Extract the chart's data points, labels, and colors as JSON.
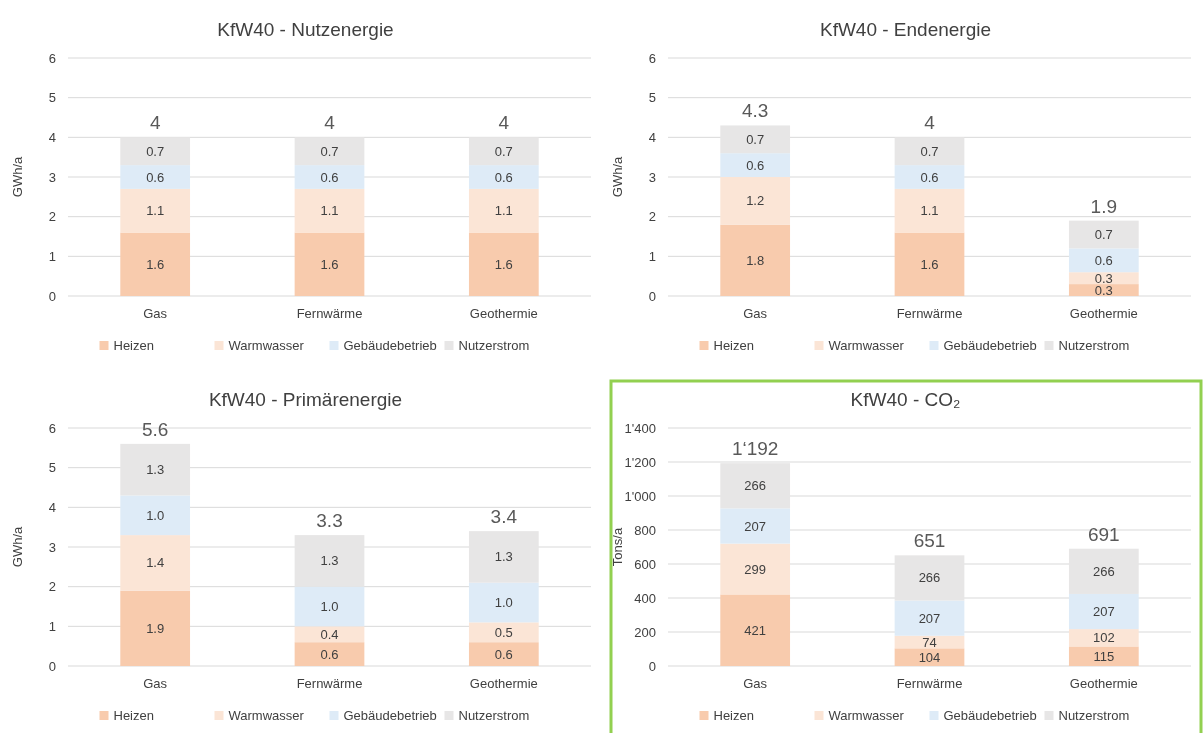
{
  "chart_data": [
    {
      "type": "bar",
      "title": "KfW40 - Nutzenergie",
      "ylabel": "GWh/a",
      "categories": [
        "Gas",
        "Fernwärme",
        "Geothermie"
      ],
      "stacked": true,
      "ylim": [
        0,
        6
      ],
      "yticks": [
        0,
        1,
        2,
        3,
        4,
        5,
        6
      ],
      "grid": "y",
      "legend": "bottom",
      "totals": [
        "4",
        "4",
        "4"
      ],
      "series": [
        {
          "name": "Heizen",
          "color": "#f8cbad",
          "values": [
            1.6,
            1.6,
            1.6
          ],
          "value_labels": [
            "1.6",
            "1.6",
            "1.6"
          ]
        },
        {
          "name": "Warmwasser",
          "color": "#fbe5d6",
          "values": [
            1.1,
            1.1,
            1.1
          ],
          "value_labels": [
            "1.1",
            "1.1",
            "1.1"
          ]
        },
        {
          "name": "Gebäudebetrieb",
          "color": "#deebf7",
          "values": [
            0.6,
            0.6,
            0.6
          ],
          "value_labels": [
            "0.6",
            "0.6",
            "0.6"
          ]
        },
        {
          "name": "Nutzerstrom",
          "color": "#e7e6e6",
          "values": [
            0.7,
            0.7,
            0.7
          ],
          "value_labels": [
            "0.7",
            "0.7",
            "0.7"
          ]
        }
      ]
    },
    {
      "type": "bar",
      "title": "KfW40 - Endenergie",
      "ylabel": "GWh/a",
      "categories": [
        "Gas",
        "Fernwärme",
        "Geothermie"
      ],
      "stacked": true,
      "ylim": [
        0,
        6
      ],
      "yticks": [
        0,
        1,
        2,
        3,
        4,
        5,
        6
      ],
      "grid": "y",
      "legend": "bottom",
      "totals": [
        "4.3",
        "4",
        "1.9"
      ],
      "series": [
        {
          "name": "Heizen",
          "color": "#f8cbad",
          "values": [
            1.8,
            1.6,
            0.3
          ],
          "value_labels": [
            "1.8",
            "1.6",
            "0.3"
          ]
        },
        {
          "name": "Warmwasser",
          "color": "#fbe5d6",
          "values": [
            1.2,
            1.1,
            0.3
          ],
          "value_labels": [
            "1.2",
            "1.1",
            "0.3"
          ]
        },
        {
          "name": "Gebäudebetrieb",
          "color": "#deebf7",
          "values": [
            0.6,
            0.6,
            0.6
          ],
          "value_labels": [
            "0.6",
            "0.6",
            "0.6"
          ]
        },
        {
          "name": "Nutzerstrom",
          "color": "#e7e6e6",
          "values": [
            0.7,
            0.7,
            0.7
          ],
          "value_labels": [
            "0.7",
            "0.7",
            "0.7"
          ]
        }
      ]
    },
    {
      "type": "bar",
      "title": "KfW40 - Primärenergie",
      "ylabel": "GWh/a",
      "categories": [
        "Gas",
        "Fernwärme",
        "Geothermie"
      ],
      "stacked": true,
      "ylim": [
        0,
        6
      ],
      "yticks": [
        0,
        1,
        2,
        3,
        4,
        5,
        6
      ],
      "grid": "y",
      "legend": "bottom",
      "totals": [
        "5.6",
        "3.3",
        "3.4"
      ],
      "series": [
        {
          "name": "Heizen",
          "color": "#f8cbad",
          "values": [
            1.9,
            0.6,
            0.6
          ],
          "value_labels": [
            "1.9",
            "0.6",
            "0.6"
          ]
        },
        {
          "name": "Warmwasser",
          "color": "#fbe5d6",
          "values": [
            1.4,
            0.4,
            0.5
          ],
          "value_labels": [
            "1.4",
            "0.4",
            "0.5"
          ]
        },
        {
          "name": "Gebäudebetrieb",
          "color": "#deebf7",
          "values": [
            1.0,
            1.0,
            1.0
          ],
          "value_labels": [
            "1.0",
            "1.0",
            "1.0"
          ]
        },
        {
          "name": "Nutzerstrom",
          "color": "#e7e6e6",
          "values": [
            1.3,
            1.3,
            1.3
          ],
          "value_labels": [
            "1.3",
            "1.3",
            "1.3"
          ]
        }
      ]
    },
    {
      "type": "bar",
      "title": "KfW40 - CO₂",
      "ylabel": "Tons/a",
      "categories": [
        "Gas",
        "Fernwärme",
        "Geothermie"
      ],
      "stacked": true,
      "ylim": [
        0,
        1400
      ],
      "yticks": [
        0,
        200,
        400,
        600,
        800,
        {
          "value": 1000,
          "label": "1'000"
        },
        {
          "value": 1200,
          "label": "1'200"
        },
        {
          "value": 1400,
          "label": "1'400"
        }
      ],
      "grid": "y",
      "legend": "bottom",
      "totals": [
        "1‘192",
        "651",
        "691"
      ],
      "series": [
        {
          "name": "Heizen",
          "color": "#f8cbad",
          "values": [
            421,
            104,
            115
          ],
          "value_labels": [
            "421",
            "104",
            "115"
          ]
        },
        {
          "name": "Warmwasser",
          "color": "#fbe5d6",
          "values": [
            299,
            74,
            102
          ],
          "value_labels": [
            "299",
            "74",
            "102"
          ]
        },
        {
          "name": "Gebäudebetrieb",
          "color": "#deebf7",
          "values": [
            207,
            207,
            207
          ],
          "value_labels": [
            "207",
            "207",
            "207"
          ]
        },
        {
          "name": "Nutzerstrom",
          "color": "#e7e6e6",
          "values": [
            266,
            266,
            266
          ],
          "value_labels": [
            "266",
            "266",
            "266"
          ]
        }
      ]
    }
  ]
}
